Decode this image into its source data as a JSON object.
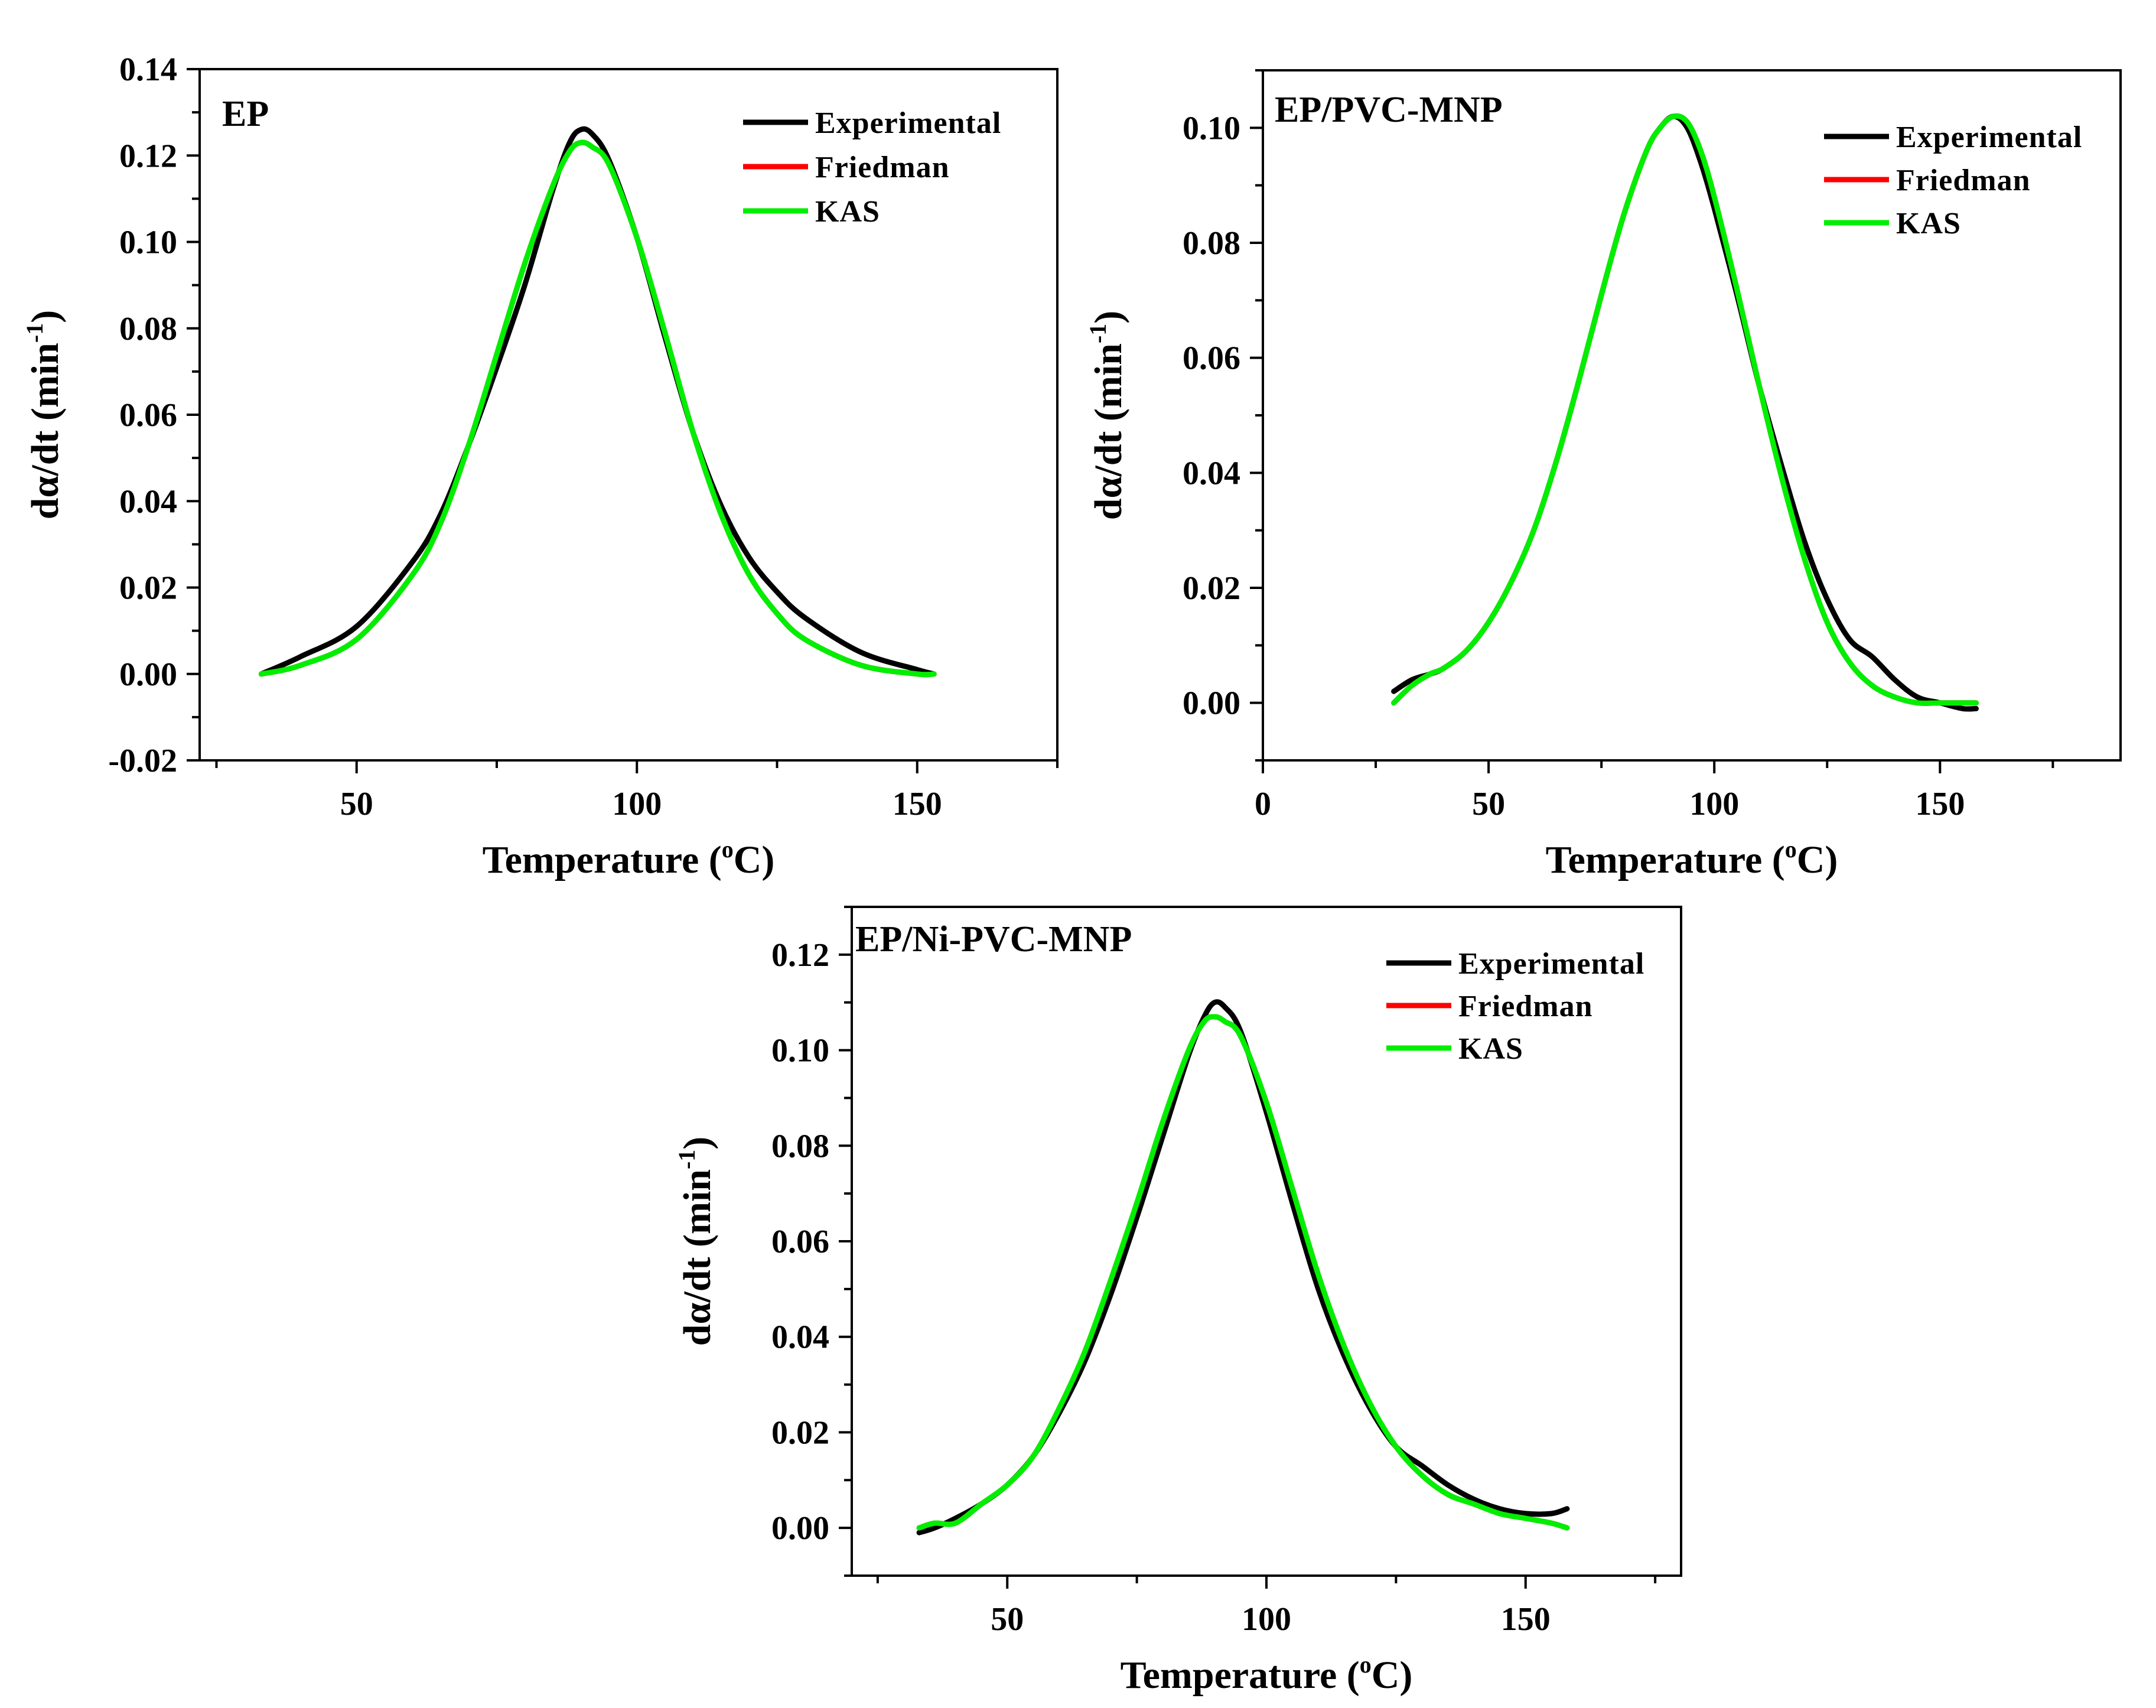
{
  "chart_data": [
    {
      "type": "line",
      "panel_label": "EP",
      "xlabel": "Temperature (",
      "xlabel_sup": "o",
      "xlabel_unit": "C)",
      "ylabel": "dα/dt (min",
      "ylabel_sup": "-1",
      "ylabel_end": ")",
      "xlim": [
        22,
        175
      ],
      "ylim": [
        -0.02,
        0.14
      ],
      "xticks": [
        50,
        100,
        150
      ],
      "xticklabels": [
        "50",
        "100",
        "150"
      ],
      "yticks": [
        -0.02,
        0,
        0.02,
        0.04,
        0.06,
        0.08,
        0.1,
        0.12,
        0.14
      ],
      "yticklabels": [
        "-0.02",
        "0.00",
        "0.02",
        "0.04",
        "0.06",
        "0.08",
        "0.10",
        "0.12",
        "0.14"
      ],
      "legend_position": "top-right",
      "series": [
        {
          "name": "Experimental",
          "color": "#000000",
          "x": [
            33,
            40,
            50,
            60,
            65,
            70,
            75,
            80,
            85,
            88,
            90,
            92,
            95,
            100,
            105,
            110,
            115,
            120,
            125,
            130,
            140,
            150,
            153
          ],
          "y": [
            0.0,
            0.004,
            0.011,
            0.026,
            0.037,
            0.053,
            0.071,
            0.09,
            0.112,
            0.123,
            0.126,
            0.125,
            0.119,
            0.101,
            0.078,
            0.056,
            0.039,
            0.027,
            0.019,
            0.013,
            0.005,
            0.001,
            0.0
          ]
        },
        {
          "name": "Friedman",
          "color": "#ff0000",
          "x": [
            33,
            40,
            50,
            60,
            65,
            70,
            75,
            80,
            85,
            88,
            90,
            92,
            95,
            100,
            105,
            110,
            115,
            120,
            125,
            130,
            140,
            150,
            153
          ],
          "y": [
            0.0,
            0.002,
            0.008,
            0.023,
            0.035,
            0.053,
            0.074,
            0.095,
            0.113,
            0.121,
            0.123,
            0.122,
            0.118,
            0.101,
            0.079,
            0.056,
            0.037,
            0.023,
            0.014,
            0.008,
            0.002,
            0.0,
            0.0
          ]
        },
        {
          "name": "KAS",
          "color": "#00ee00",
          "x": [
            33,
            40,
            50,
            60,
            65,
            70,
            75,
            80,
            85,
            88,
            90,
            92,
            95,
            100,
            105,
            110,
            115,
            120,
            125,
            130,
            140,
            150,
            153
          ],
          "y": [
            0.0,
            0.002,
            0.008,
            0.023,
            0.035,
            0.053,
            0.074,
            0.095,
            0.113,
            0.121,
            0.123,
            0.122,
            0.118,
            0.101,
            0.079,
            0.056,
            0.037,
            0.023,
            0.014,
            0.008,
            0.002,
            0.0,
            0.0
          ]
        }
      ]
    },
    {
      "type": "line",
      "panel_label": "EP/PVC-MNP",
      "xlabel": "Temperature (",
      "xlabel_sup": "o",
      "xlabel_unit": "C)",
      "ylabel": "dα/dt (min",
      "ylabel_sup": "-1",
      "ylabel_end": ")",
      "xlim": [
        0,
        190
      ],
      "ylim": [
        -0.01,
        0.11
      ],
      "xticks": [
        0,
        50,
        100,
        150
      ],
      "xticklabels": [
        "0",
        "50",
        "100",
        "150"
      ],
      "yticks": [
        0,
        0.02,
        0.04,
        0.06,
        0.08,
        0.1
      ],
      "yticklabels": [
        "0.00",
        "0.02",
        "0.04",
        "0.06",
        "0.08",
        "0.10"
      ],
      "legend_position": "top-right",
      "series": [
        {
          "name": "Experimental",
          "color": "#000000",
          "x": [
            29,
            33,
            37,
            40,
            45,
            50,
            55,
            60,
            65,
            70,
            75,
            80,
            85,
            88,
            91,
            94,
            97,
            100,
            105,
            110,
            115,
            120,
            125,
            130,
            135,
            140,
            145,
            150,
            155,
            158
          ],
          "y": [
            0.002,
            0.004,
            0.005,
            0.006,
            0.009,
            0.014,
            0.021,
            0.03,
            0.042,
            0.056,
            0.071,
            0.085,
            0.096,
            0.1,
            0.102,
            0.1,
            0.094,
            0.086,
            0.071,
            0.055,
            0.041,
            0.028,
            0.018,
            0.011,
            0.008,
            0.004,
            0.001,
            0.0,
            -0.001,
            -0.001
          ]
        },
        {
          "name": "Friedman",
          "color": "#ff0000",
          "x": [
            29,
            33,
            37,
            40,
            45,
            50,
            55,
            60,
            65,
            70,
            75,
            80,
            85,
            88,
            91,
            94,
            97,
            100,
            105,
            110,
            115,
            120,
            125,
            130,
            135,
            140,
            145,
            150,
            155,
            158
          ],
          "y": [
            0.0,
            0.003,
            0.005,
            0.006,
            0.009,
            0.014,
            0.021,
            0.03,
            0.042,
            0.056,
            0.071,
            0.085,
            0.096,
            0.1,
            0.102,
            0.101,
            0.096,
            0.088,
            0.072,
            0.055,
            0.039,
            0.025,
            0.014,
            0.007,
            0.003,
            0.001,
            0.0,
            0.0,
            0.0,
            0.0
          ]
        },
        {
          "name": "KAS",
          "color": "#00ee00",
          "x": [
            29,
            33,
            37,
            40,
            45,
            50,
            55,
            60,
            65,
            70,
            75,
            80,
            85,
            88,
            91,
            94,
            97,
            100,
            105,
            110,
            115,
            120,
            125,
            130,
            135,
            140,
            145,
            150,
            155,
            158
          ],
          "y": [
            0.0,
            0.003,
            0.005,
            0.006,
            0.009,
            0.014,
            0.021,
            0.03,
            0.042,
            0.056,
            0.071,
            0.085,
            0.096,
            0.1,
            0.102,
            0.101,
            0.096,
            0.088,
            0.072,
            0.055,
            0.039,
            0.025,
            0.014,
            0.007,
            0.003,
            0.001,
            0.0,
            0.0,
            0.0,
            0.0
          ]
        }
      ]
    },
    {
      "type": "line",
      "panel_label": "EP/Ni-PVC-MNP",
      "xlabel": "Temperature (",
      "xlabel_sup": "o",
      "xlabel_unit": "C)",
      "ylabel": "dα/dt (min",
      "ylabel_sup": "-1",
      "ylabel_end": ")",
      "xlim": [
        20,
        180
      ],
      "ylim": [
        -0.01,
        0.13
      ],
      "xticks": [
        50,
        100,
        150
      ],
      "xticklabels": [
        "50",
        "100",
        "150"
      ],
      "yticks": [
        0,
        0.02,
        0.04,
        0.06,
        0.08,
        0.1,
        0.12
      ],
      "yticklabels": [
        "0.00",
        "0.02",
        "0.04",
        "0.06",
        "0.08",
        "0.10",
        "0.12"
      ],
      "legend_position": "top-right",
      "series": [
        {
          "name": "Experimental",
          "color": "#000000",
          "x": [
            33,
            36,
            40,
            45,
            50,
            55,
            60,
            65,
            70,
            75,
            80,
            85,
            88,
            90,
            92,
            95,
            100,
            105,
            110,
            115,
            120,
            125,
            130,
            135,
            140,
            145,
            150,
            155,
            158
          ],
          "y": [
            -0.001,
            0.0,
            0.002,
            0.005,
            0.009,
            0.015,
            0.024,
            0.035,
            0.049,
            0.065,
            0.082,
            0.099,
            0.107,
            0.11,
            0.109,
            0.104,
            0.087,
            0.068,
            0.05,
            0.036,
            0.025,
            0.017,
            0.013,
            0.009,
            0.006,
            0.004,
            0.003,
            0.003,
            0.004
          ]
        },
        {
          "name": "Friedman",
          "color": "#ff0000",
          "x": [
            33,
            36,
            40,
            45,
            50,
            55,
            60,
            65,
            70,
            75,
            80,
            85,
            88,
            90,
            92,
            95,
            100,
            105,
            110,
            115,
            120,
            125,
            130,
            135,
            140,
            145,
            150,
            155,
            158
          ],
          "y": [
            0.0,
            0.001,
            0.001,
            0.005,
            0.009,
            0.015,
            0.025,
            0.037,
            0.052,
            0.068,
            0.085,
            0.1,
            0.106,
            0.107,
            0.106,
            0.103,
            0.089,
            0.071,
            0.053,
            0.038,
            0.026,
            0.017,
            0.011,
            0.007,
            0.005,
            0.003,
            0.002,
            0.001,
            0.0
          ]
        },
        {
          "name": "KAS",
          "color": "#00ee00",
          "x": [
            33,
            36,
            40,
            45,
            50,
            55,
            60,
            65,
            70,
            75,
            80,
            85,
            88,
            90,
            92,
            95,
            100,
            105,
            110,
            115,
            120,
            125,
            130,
            135,
            140,
            145,
            150,
            155,
            158
          ],
          "y": [
            0.0,
            0.001,
            0.001,
            0.005,
            0.009,
            0.015,
            0.025,
            0.037,
            0.052,
            0.068,
            0.085,
            0.1,
            0.106,
            0.107,
            0.106,
            0.103,
            0.089,
            0.071,
            0.053,
            0.038,
            0.026,
            0.017,
            0.011,
            0.007,
            0.005,
            0.003,
            0.002,
            0.001,
            0.0
          ]
        }
      ]
    }
  ]
}
